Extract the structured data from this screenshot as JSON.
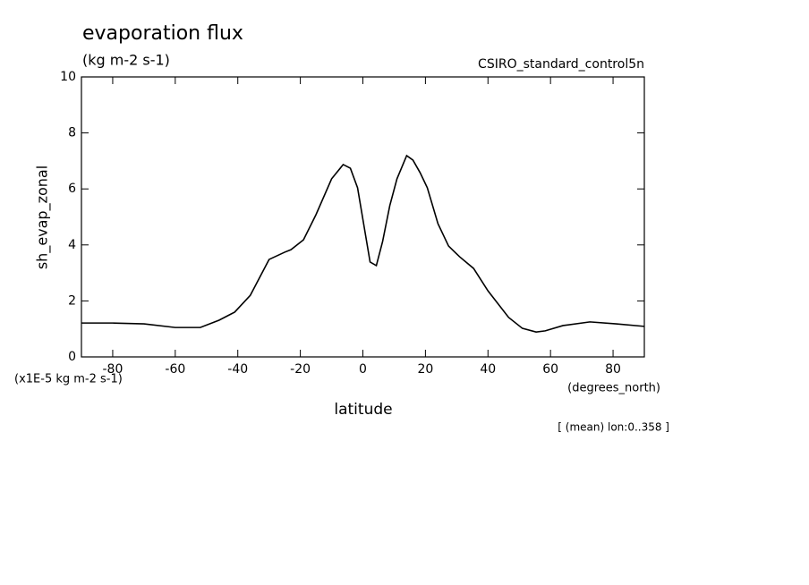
{
  "chart_data": {
    "type": "line",
    "title": "evaporation flux",
    "subtitle": "(kg m-2 s-1)",
    "dataset": "CSIRO_standard_control5n",
    "y_label": "sh_evap_zonal",
    "y_units": "(x1E-5 kg m-2 s-1)",
    "x_label": "latitude",
    "x_units": "(degrees_north)",
    "annotation": "[ (mean) lon:0..358 ]",
    "x": [
      -90,
      -80,
      -70,
      -60,
      -52,
      -46,
      -41,
      -36,
      -30,
      -25,
      -23,
      -19,
      -15,
      -10,
      -6.3,
      -4,
      -1.7,
      2.3,
      4.3,
      6.3,
      8.6,
      10.9,
      14,
      16,
      18.3,
      20.6,
      24,
      27.4,
      30.9,
      35.4,
      40,
      46.6,
      51,
      55.4,
      58.3,
      64,
      72.6,
      81,
      90
    ],
    "series": [
      {
        "color": "#000000",
        "values": [
          1.21,
          1.21,
          1.18,
          1.05,
          1.05,
          1.31,
          1.6,
          2.2,
          3.48,
          3.74,
          3.83,
          4.18,
          5.08,
          6.36,
          6.87,
          6.74,
          6.04,
          3.39,
          3.26,
          4.12,
          5.4,
          6.36,
          7.19,
          7.03,
          6.58,
          6.04,
          4.76,
          3.96,
          3.58,
          3.16,
          2.36,
          1.41,
          1.02,
          0.89,
          0.93,
          1.12,
          1.25,
          1.18,
          1.09
        ]
      }
    ],
    "xlim": [
      -90,
      90
    ],
    "xticks": [
      -80,
      -60,
      -40,
      -20,
      0,
      20,
      40,
      60,
      80
    ],
    "ylim": [
      0,
      10
    ],
    "yticks": [
      0,
      2,
      4,
      6,
      8,
      10
    ]
  }
}
